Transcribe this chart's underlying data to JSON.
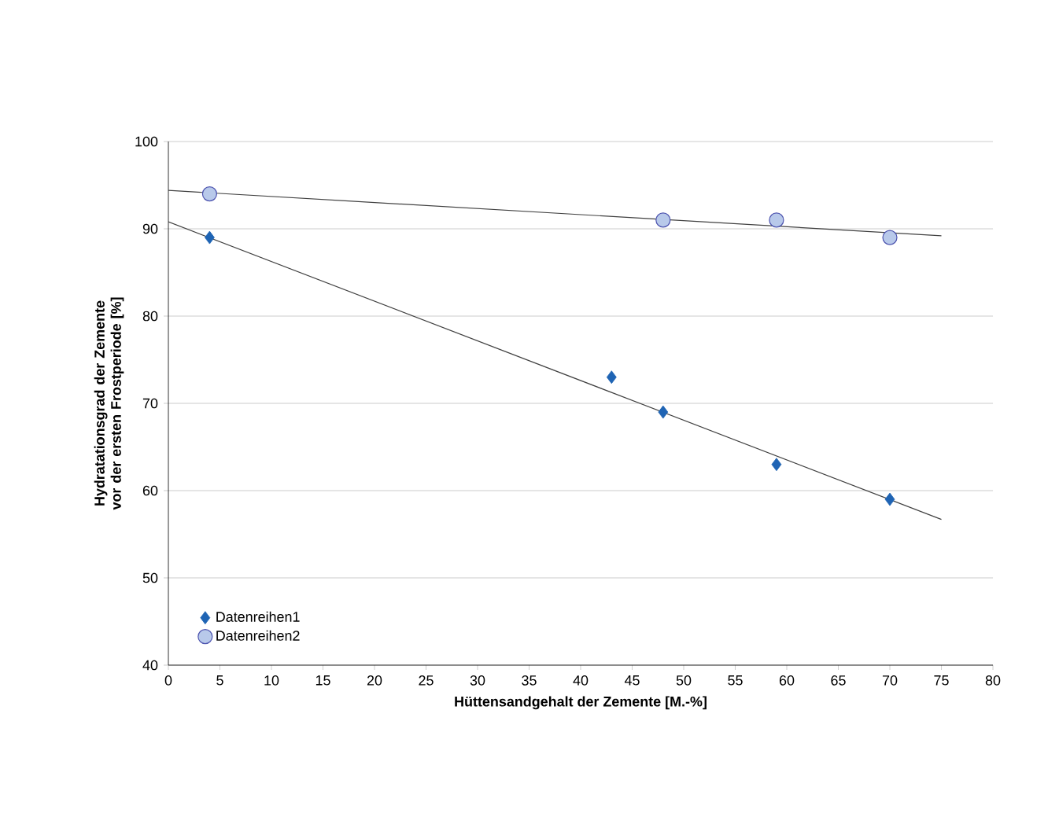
{
  "chart_data": {
    "type": "scatter",
    "xlabel": "Hüttensandgehalt der Zemente [M.-%]",
    "ylabel": "Hydratationsgrad der Zemente vor der ersten Frostperiode [%]",
    "xlim": [
      0,
      80
    ],
    "xticks": [
      0,
      5,
      10,
      15,
      20,
      25,
      30,
      35,
      40,
      45,
      50,
      55,
      60,
      65,
      70,
      75,
      80
    ],
    "ylim": [
      40,
      100
    ],
    "yticks": [
      40,
      50,
      60,
      70,
      80,
      90,
      100
    ],
    "grid": "y",
    "legend": "bottom left",
    "series": [
      {
        "name": "Datenreihen1",
        "color": "#1f64b4",
        "marker": "diamond",
        "x": [
          4,
          43,
          48,
          59,
          70
        ],
        "values": [
          89,
          73,
          69,
          63,
          59
        ]
      },
      {
        "name": "Datenreihen2",
        "color": "#b8c9ea",
        "marker": "circle",
        "x": [
          4,
          48,
          59,
          70
        ],
        "values": [
          94,
          91,
          91,
          89
        ]
      },
      {
        "type": "line",
        "color": "#404040",
        "marker": "none",
        "x": [
          0,
          75
        ],
        "values": [
          90.8,
          56.7
        ]
      },
      {
        "type": "line",
        "color": "#404040",
        "marker": "none",
        "x": [
          0,
          75
        ],
        "values": [
          94.4,
          89.2
        ]
      }
    ]
  }
}
